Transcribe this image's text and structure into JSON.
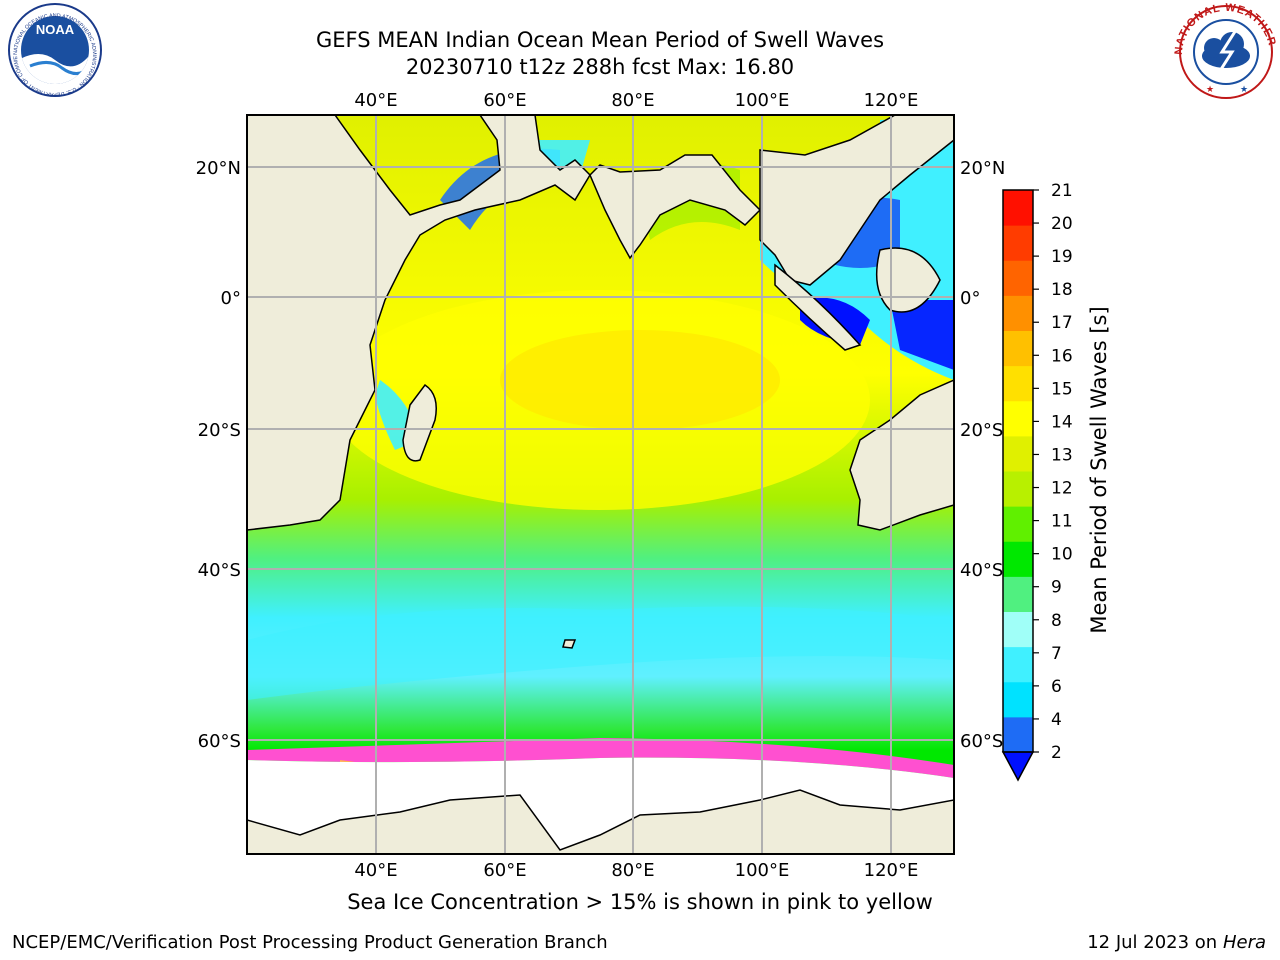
{
  "title_line1": "GEFS MEAN Indian Ocean Mean Period of Swell Waves",
  "title_line2": "20230710 t12z 288h fcst   Max: 16.80",
  "map": {
    "lon_ticks_top": [
      "40°E",
      "60°E",
      "80°E",
      "100°E",
      "120°E"
    ],
    "lon_ticks_bottom": [
      "40°E",
      "60°E",
      "80°E",
      "100°E",
      "120°E"
    ],
    "lat_ticks_left": [
      "20°N",
      "0°",
      "20°S",
      "40°S",
      "60°S"
    ],
    "lat_ticks_right": [
      "20°N",
      "0°",
      "20°S",
      "40°S",
      "60°S"
    ],
    "colors": {
      "land": "#efedda",
      "ice": "#ffffff",
      "grid": "#b0b0b0"
    }
  },
  "colorbar": {
    "label": "Mean Period of Swell Waves [s]",
    "tick_labels": [
      "2",
      "4",
      "6",
      "7",
      "8",
      "9",
      "10",
      "11",
      "12",
      "13",
      "14",
      "15",
      "16",
      "17",
      "18",
      "19",
      "20",
      "21"
    ],
    "colors": [
      "#1e6cf5",
      "#00e2ff",
      "#40f0ff",
      "#a0fff8",
      "#50f080",
      "#00e800",
      "#60f000",
      "#b8f000",
      "#e0f000",
      "#ffff00",
      "#ffe000",
      "#ffc000",
      "#ff9000",
      "#ff6400",
      "#ff3c00",
      "#ff1000"
    ],
    "extend_color": "#0010ff"
  },
  "note": "Sea Ice Concentration > 15% is shown in pink to yellow",
  "footer": {
    "left": "NCEP/EMC/Verification Post Processing Product Generation Branch",
    "right_prefix": "12 Jul 2023 on",
    "right_host": "Hera"
  },
  "logos": {
    "noaa": "NOAA",
    "noaa_ring": "NATIONAL OCEANIC AND ATMOSPHERIC ADMINISTRATION · U.S. DEPARTMENT OF COMMERCE",
    "nws_ring": "NATIONAL WEATHER SERVICE"
  }
}
